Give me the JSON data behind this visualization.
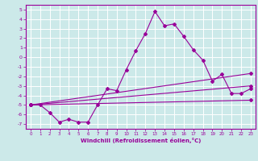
{
  "xlabel": "Windchill (Refroidissement éolien,°C)",
  "background_color": "#cce9e9",
  "grid_color": "#ffffff",
  "line_color": "#990099",
  "xlim": [
    -0.5,
    23.5
  ],
  "ylim": [
    -7.5,
    5.5
  ],
  "xticks": [
    0,
    1,
    2,
    3,
    4,
    5,
    6,
    7,
    8,
    9,
    10,
    11,
    12,
    13,
    14,
    15,
    16,
    17,
    18,
    19,
    20,
    21,
    22,
    23
  ],
  "yticks": [
    -7,
    -6,
    -5,
    -4,
    -3,
    -2,
    -1,
    0,
    1,
    2,
    3,
    4,
    5
  ],
  "series1_x": [
    0,
    1,
    2,
    3,
    4,
    5,
    6,
    7,
    8,
    9,
    10,
    11,
    12,
    13,
    14,
    15,
    16,
    17,
    18,
    19,
    20,
    21,
    22,
    23
  ],
  "series1_y": [
    -5.0,
    -5.0,
    -5.8,
    -6.8,
    -6.5,
    -6.8,
    -6.8,
    -5.0,
    -3.3,
    -3.5,
    -1.3,
    0.7,
    2.5,
    4.8,
    3.3,
    3.5,
    2.2,
    0.8,
    -0.3,
    -2.5,
    -1.8,
    -3.8,
    -3.8,
    -3.3
  ],
  "series2_x": [
    0,
    23
  ],
  "series2_y": [
    -5.0,
    -1.7
  ],
  "series3_x": [
    0,
    23
  ],
  "series3_y": [
    -5.0,
    -3.0
  ],
  "series4_x": [
    0,
    23
  ],
  "series4_y": [
    -5.0,
    -4.5
  ]
}
